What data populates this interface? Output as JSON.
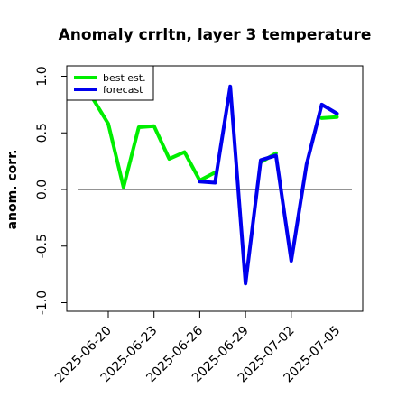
{
  "chart_data": {
    "type": "line",
    "title": "Anomaly crrltn, layer 3 temperature",
    "xlabel": "",
    "ylabel": "anom. corr.",
    "ylim": [
      -1.0,
      1.0
    ],
    "yticks": [
      -1.0,
      -0.5,
      0.0,
      0.5,
      1.0
    ],
    "ytick_labels": [
      "-1.0",
      "-0.5",
      "0.0",
      "0.5",
      "1.0"
    ],
    "xlim": [
      "2025-06-16",
      "2025-07-06"
    ],
    "xticks": [
      {
        "date": "2025-06-20",
        "label": "2025-06-20",
        "color": "#000000"
      },
      {
        "date": "2025-06-23",
        "label": "2025-06-23",
        "color": "#000000"
      },
      {
        "date": "2025-06-26",
        "label": "2025-06-26",
        "color": "#228B22"
      },
      {
        "date": "2025-06-29",
        "label": "2025-06-29",
        "color": "#000000"
      },
      {
        "date": "2025-07-02",
        "label": "2025-07-02",
        "color": "#000000"
      },
      {
        "date": "2025-07-05",
        "label": "2025-07-05",
        "color": "#000000"
      }
    ],
    "x": [
      "2025-06-19",
      "2025-06-20",
      "2025-06-21",
      "2025-06-22",
      "2025-06-23",
      "2025-06-24",
      "2025-06-25",
      "2025-06-26",
      "2025-06-27",
      "2025-06-28",
      "2025-06-29",
      "2025-06-30",
      "2025-07-01",
      "2025-07-02",
      "2025-07-03",
      "2025-07-04",
      "2025-07-05"
    ],
    "series": [
      {
        "name": "best est.",
        "color": "#00ee00",
        "values": [
          0.8,
          0.58,
          0.02,
          0.55,
          0.56,
          0.27,
          0.33,
          0.08,
          0.15,
          null,
          null,
          0.24,
          0.32,
          null,
          null,
          0.63,
          0.64
        ]
      },
      {
        "name": "forecast",
        "color": "#0000ee",
        "values": [
          null,
          null,
          null,
          null,
          null,
          null,
          null,
          0.07,
          0.06,
          0.91,
          -0.83,
          0.26,
          0.3,
          -0.63,
          0.22,
          0.75,
          0.67
        ]
      }
    ],
    "hline": 0.0,
    "grid": false,
    "legend_position": "top-left"
  }
}
